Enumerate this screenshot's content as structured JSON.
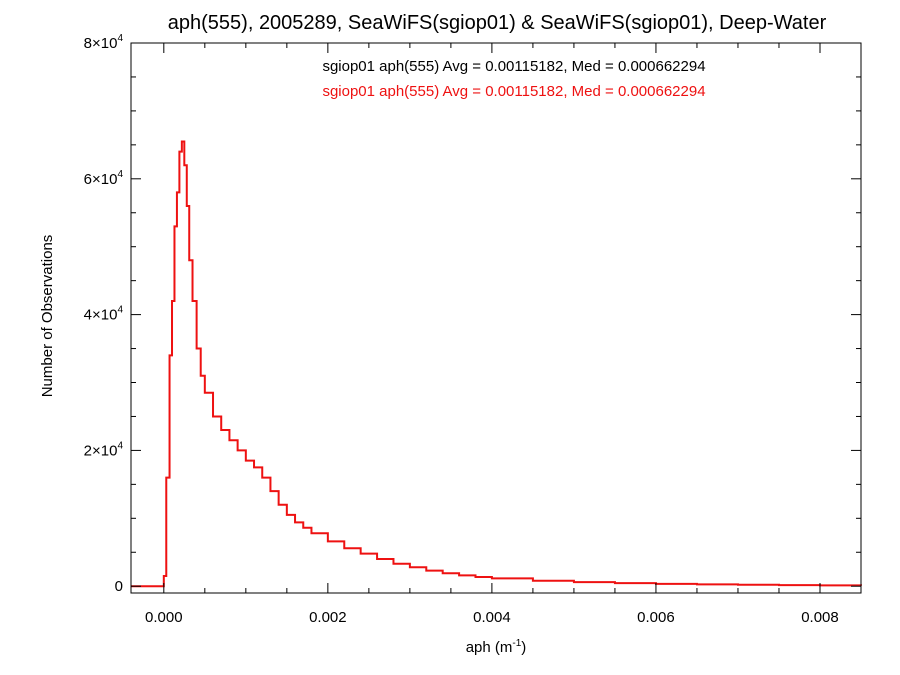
{
  "chart_data": {
    "type": "line",
    "title": "aph(555), 2005289, SeaWiFS(sgiop01) & SeaWiFS(sgiop01), Deep-Water",
    "xlabel": "aph (m",
    "xlabel_sup": "-1",
    "xlabel_end": ")",
    "ylabel": "Number of Observations",
    "xlim": [
      -0.0004,
      0.0085
    ],
    "ylim": [
      -1000,
      80000
    ],
    "x_ticks": [
      {
        "value": 0.0,
        "label": "0.000"
      },
      {
        "value": 0.002,
        "label": "0.002"
      },
      {
        "value": 0.004,
        "label": "0.004"
      },
      {
        "value": 0.006,
        "label": "0.006"
      },
      {
        "value": 0.008,
        "label": "0.008"
      }
    ],
    "y_ticks": [
      {
        "value": 0,
        "label": "0",
        "sup": ""
      },
      {
        "value": 20000,
        "label": "2×10",
        "sup": "4"
      },
      {
        "value": 40000,
        "label": "4×10",
        "sup": "4"
      },
      {
        "value": 60000,
        "label": "6×10",
        "sup": "4"
      },
      {
        "value": 80000,
        "label": "8×10",
        "sup": "4"
      }
    ],
    "annotations": [
      {
        "text": "sgiop01 aph(555) Avg = 0.00115182, Med = 0.000662294",
        "color": "#000000"
      },
      {
        "text": "sgiop01 aph(555) Avg = 0.00115182, Med = 0.000662294",
        "color": "#ee1111"
      }
    ],
    "series": [
      {
        "color": "#ee1111",
        "style": "step",
        "points": [
          [
            -0.0004,
            0
          ],
          [
            -5e-05,
            0
          ],
          [
            0.0,
            1500
          ],
          [
            3e-05,
            16000
          ],
          [
            7e-05,
            34000
          ],
          [
            0.0001,
            42000
          ],
          [
            0.00013,
            53000
          ],
          [
            0.00016,
            58000
          ],
          [
            0.00019,
            64000
          ],
          [
            0.00022,
            65500
          ],
          [
            0.00025,
            62000
          ],
          [
            0.00028,
            56000
          ],
          [
            0.00031,
            48000
          ],
          [
            0.00035,
            42000
          ],
          [
            0.0004,
            35000
          ],
          [
            0.00045,
            31000
          ],
          [
            0.0005,
            28500
          ],
          [
            0.0006,
            25000
          ],
          [
            0.0007,
            23000
          ],
          [
            0.0008,
            21500
          ],
          [
            0.0009,
            20000
          ],
          [
            0.001,
            18500
          ],
          [
            0.0011,
            17500
          ],
          [
            0.0012,
            16000
          ],
          [
            0.0013,
            14000
          ],
          [
            0.0014,
            12000
          ],
          [
            0.0015,
            10500
          ],
          [
            0.0016,
            9400
          ],
          [
            0.0017,
            8600
          ],
          [
            0.0018,
            7800
          ],
          [
            0.002,
            6600
          ],
          [
            0.0022,
            5600
          ],
          [
            0.0024,
            4800
          ],
          [
            0.0026,
            4000
          ],
          [
            0.0028,
            3300
          ],
          [
            0.003,
            2800
          ],
          [
            0.0032,
            2300
          ],
          [
            0.0034,
            1900
          ],
          [
            0.0036,
            1600
          ],
          [
            0.0038,
            1350
          ],
          [
            0.004,
            1150
          ],
          [
            0.0045,
            800
          ],
          [
            0.005,
            600
          ],
          [
            0.0055,
            450
          ],
          [
            0.006,
            350
          ],
          [
            0.0065,
            270
          ],
          [
            0.007,
            210
          ],
          [
            0.0075,
            160
          ],
          [
            0.008,
            120
          ],
          [
            0.0085,
            90
          ]
        ]
      }
    ]
  }
}
